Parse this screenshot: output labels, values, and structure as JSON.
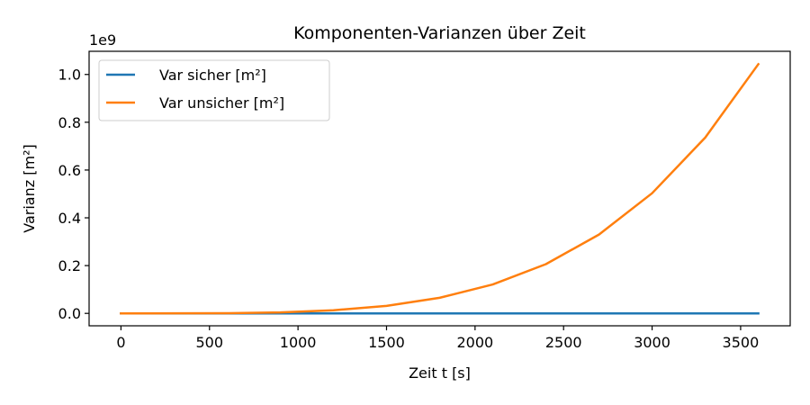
{
  "chart_data": {
    "type": "line",
    "title": "Komponenten-Varianzen über Zeit",
    "xlabel": "Zeit t [s]",
    "ylabel": "Varianz [m²]",
    "y_offset_label": "1e9",
    "xlim": [
      -180,
      3780
    ],
    "ylim": [
      -0.052,
      1.097
    ],
    "x_ticks": [
      0,
      500,
      1000,
      1500,
      2000,
      2500,
      3000,
      3500
    ],
    "x_tick_labels": [
      "0",
      "500",
      "1000",
      "1500",
      "2000",
      "2500",
      "3000",
      "3500"
    ],
    "y_ticks": [
      0.0,
      0.2,
      0.4,
      0.6,
      0.8,
      1.0
    ],
    "y_tick_labels": [
      "0.0",
      "0.2",
      "0.4",
      "0.6",
      "0.8",
      "1.0"
    ],
    "grid": false,
    "legend_position": "upper-left",
    "series": [
      {
        "name": "Var sicher [m²]",
        "color": "#1f77b4",
        "x": [
          0,
          600,
          1200,
          1800,
          2400,
          3000,
          3600
        ],
        "y": [
          0,
          0,
          0,
          0,
          0,
          0,
          0
        ]
      },
      {
        "name": "Var unsicher [m²]",
        "color": "#ff7f0e",
        "x": [
          0,
          300,
          600,
          900,
          1200,
          1500,
          1800,
          2100,
          2400,
          2700,
          3000,
          3300,
          3600
        ],
        "y": [
          0,
          5e-05,
          0.0008,
          0.0041,
          0.0129,
          0.0315,
          0.0653,
          0.121,
          0.206,
          0.33,
          0.503,
          0.736,
          1.043
        ]
      }
    ]
  }
}
